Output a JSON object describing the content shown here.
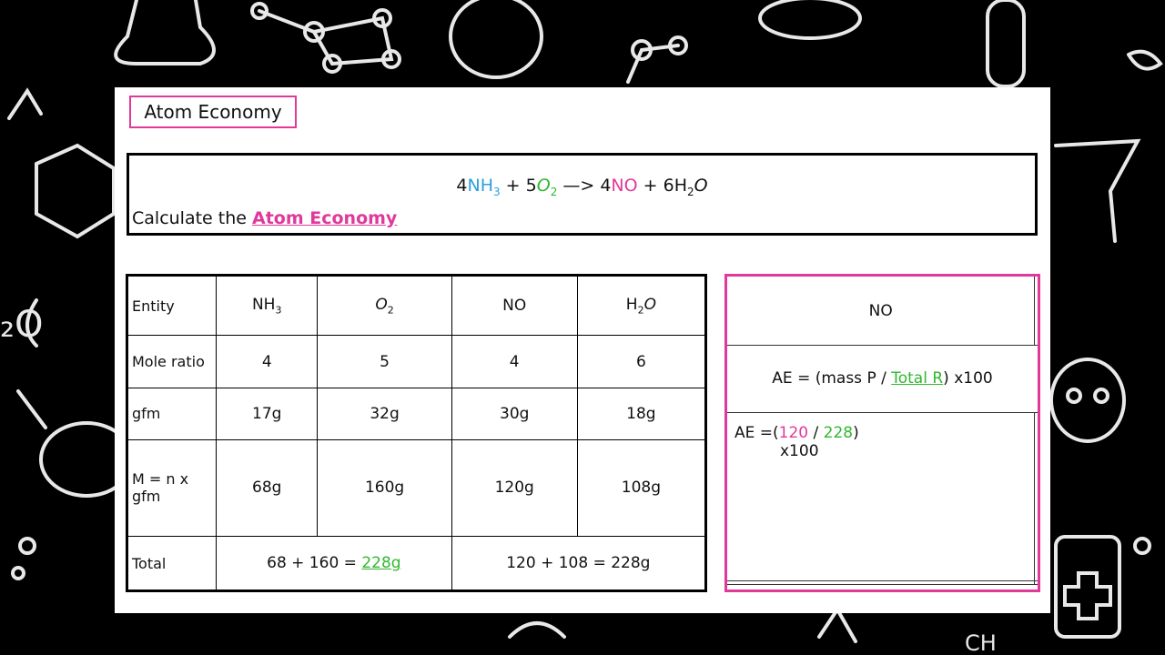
{
  "title": "Atom Economy",
  "equation": {
    "c1": "4",
    "s1_main": "NH",
    "s1_sub": "3",
    "plus1": " + ",
    "c2": "5",
    "s2_main": "O",
    "s2_sub": "2",
    "arrow": " —> ",
    "c3": "4",
    "s3": "NO",
    "plus2": " + ",
    "c4": "6",
    "s4_main": "H",
    "s4_sub": "2",
    "s4_end": "O"
  },
  "prompt": {
    "text": "Calculate the ",
    "link": "Atom Economy"
  },
  "table": {
    "entity_label": "Entity",
    "species": [
      {
        "main": "NH",
        "sub": "3",
        "end": ""
      },
      {
        "main": "O",
        "sub": "2",
        "end": ""
      },
      {
        "main": "NO",
        "sub": "",
        "end": ""
      },
      {
        "main": "H",
        "sub": "2",
        "end": "O"
      }
    ],
    "mole_ratio_label": "Mole ratio",
    "mole_ratio": [
      "4",
      "5",
      "4",
      "6"
    ],
    "gfm_label": "gfm",
    "gfm": [
      "17g",
      "32g",
      "30g",
      "18g"
    ],
    "mass_label": "M = n x gfm",
    "mass": [
      "68g",
      "160g",
      "120g",
      "108g"
    ],
    "total_label": "Total",
    "total_reactants_expr": "68 + 160 = ",
    "total_reactants_value": "228g",
    "total_products": "120 + 108 = 228g"
  },
  "side": {
    "header": "NO",
    "formula_pre": "AE = (mass P / ",
    "formula_link": "Total R",
    "formula_post": ") x100",
    "calc_pre": "AE =(",
    "calc_num": "120",
    "calc_slash": " / ",
    "calc_den": "228",
    "calc_close": ")",
    "calc_line2": "x100"
  },
  "colors": {
    "accent_pink": "#e0399b",
    "ammonia_blue": "#2a9fe0",
    "oxygen_green": "#2fb82f"
  }
}
